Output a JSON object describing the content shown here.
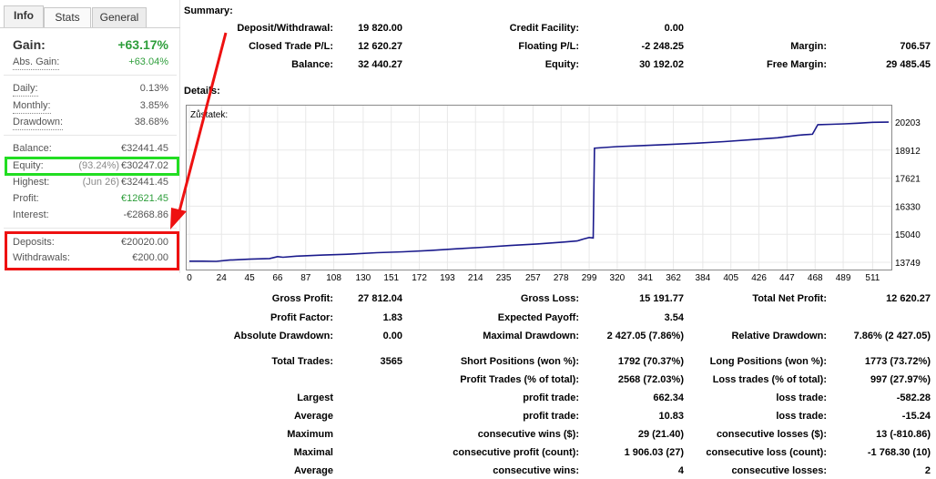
{
  "left_panel": {
    "tabs": [
      "Info",
      "Stats",
      "General"
    ],
    "gain": {
      "label": "Gain:",
      "value": "+63.17%"
    },
    "abs_gain": {
      "label": "Abs. Gain:",
      "value": "+63.04%"
    },
    "daily": {
      "label": "Daily:",
      "value": "0.13%"
    },
    "monthly": {
      "label": "Monthly:",
      "value": "3.85%"
    },
    "drawdown": {
      "label": "Drawdown:",
      "value": "38.68%"
    },
    "balance": {
      "label": "Balance:",
      "value": "€32441.45"
    },
    "equity": {
      "label": "Equity:",
      "sub": "(93.24%)",
      "value": "€30247.02"
    },
    "highest": {
      "label": "Highest:",
      "sub": "(Jun 26)",
      "value": "€32441.45"
    },
    "profit": {
      "label": "Profit:",
      "value": "€12621.45"
    },
    "interest": {
      "label": "Interest:",
      "value": "-€2868.86"
    },
    "deposits": {
      "label": "Deposits:",
      "value": "€20020.00"
    },
    "withdrawals": {
      "label": "Withdrawals:",
      "value": "€200.00"
    }
  },
  "summary": {
    "title": "Summary:",
    "deposit_withdrawal": {
      "label": "Deposit/Withdrawal:",
      "value": "19 820.00"
    },
    "credit_facility": {
      "label": "Credit Facility:",
      "value": "0.00"
    },
    "closed_trade_pl": {
      "label": "Closed Trade P/L:",
      "value": "12 620.27"
    },
    "floating_pl": {
      "label": "Floating P/L:",
      "value": "-2 248.25"
    },
    "margin": {
      "label": "Margin:",
      "value": "706.57"
    },
    "balance": {
      "label": "Balance:",
      "value": "32 440.27"
    },
    "equity": {
      "label": "Equity:",
      "value": "30 192.02"
    },
    "free_margin": {
      "label": "Free Margin:",
      "value": "29 485.45"
    }
  },
  "details": {
    "title": "Details:"
  },
  "chart_data": {
    "type": "line",
    "title": "Zůstatek:",
    "x_ticks": [
      "0",
      "24",
      "45",
      "66",
      "87",
      "108",
      "130",
      "151",
      "172",
      "193",
      "214",
      "235",
      "257",
      "278",
      "299",
      "320",
      "341",
      "362",
      "384",
      "405",
      "426",
      "447",
      "468",
      "489",
      "511"
    ],
    "y_ticks": [
      "20203",
      "18912",
      "17621",
      "16330",
      "15040",
      "13749"
    ],
    "ylim": [
      13749,
      20203
    ],
    "xlim": [
      0,
      523
    ],
    "line_color": "#1a1a8c",
    "series": [
      {
        "x": [
          0,
          10,
          20,
          30,
          45,
          60,
          66,
          70,
          80,
          100,
          120,
          140,
          160,
          180,
          200,
          220,
          240,
          260,
          280,
          290,
          295,
          299,
          302,
          303,
          310,
          320,
          340,
          360,
          380,
          400,
          420,
          440,
          455,
          460,
          466,
          470,
          480,
          490,
          500,
          511,
          523
        ],
        "y": [
          13800,
          13800,
          13790,
          13850,
          13890,
          13920,
          14010,
          13980,
          14030,
          14080,
          14120,
          14190,
          14230,
          14290,
          14370,
          14440,
          14520,
          14590,
          14680,
          14730,
          14820,
          14890,
          14870,
          19000,
          19030,
          19070,
          19120,
          19170,
          19230,
          19300,
          19390,
          19480,
          19590,
          19620,
          19640,
          20080,
          20100,
          20120,
          20150,
          20190,
          20200
        ]
      }
    ]
  },
  "stats": {
    "gross_profit": {
      "label": "Gross Profit:",
      "value": "27 812.04"
    },
    "gross_loss": {
      "label": "Gross Loss:",
      "value": "15 191.77"
    },
    "total_net_profit": {
      "label": "Total Net Profit:",
      "value": "12 620.27"
    },
    "profit_factor": {
      "label": "Profit Factor:",
      "value": "1.83"
    },
    "expected_payoff": {
      "label": "Expected Payoff:",
      "value": "3.54"
    },
    "absolute_drawdown": {
      "label": "Absolute Drawdown:",
      "value": "0.00"
    },
    "maximal_drawdown": {
      "label": "Maximal Drawdown:",
      "value": "2 427.05 (7.86%)"
    },
    "relative_drawdown": {
      "label": "Relative Drawdown:",
      "value": "7.86% (2 427.05)"
    },
    "total_trades": {
      "label": "Total Trades:",
      "value": "3565"
    },
    "short_positions": {
      "label": "Short Positions (won %):",
      "value": "1792 (70.37%)"
    },
    "long_positions": {
      "label": "Long Positions (won %):",
      "value": "1773 (73.72%)"
    },
    "profit_trades": {
      "label": "Profit Trades (% of total):",
      "value": "2568 (72.03%)"
    },
    "loss_trades": {
      "label": "Loss trades (% of total):",
      "value": "997 (27.97%)"
    },
    "largest": {
      "label": "Largest",
      "profit_label": "profit trade:",
      "profit": "662.34",
      "loss_label": "loss trade:",
      "loss": "-582.28"
    },
    "average": {
      "label": "Average",
      "profit_label": "profit trade:",
      "profit": "10.83",
      "loss_label": "loss trade:",
      "loss": "-15.24"
    },
    "maximum": {
      "label": "Maximum",
      "profit_label": "consecutive wins ($):",
      "profit": "29 (21.40)",
      "loss_label": "consecutive losses ($):",
      "loss": "13 (-810.86)"
    },
    "maximal": {
      "label": "Maximal",
      "profit_label": "consecutive profit (count):",
      "profit": "1 906.03 (27)",
      "loss_label": "consecutive loss (count):",
      "loss": "-1 768.30 (10)"
    },
    "average2": {
      "label": "Average",
      "profit_label": "consecutive wins:",
      "profit": "4",
      "loss_label": "consecutive losses:",
      "loss": "2"
    }
  },
  "annotation": {
    "arrow_color": "#ee1111",
    "green_box_color": "#22dd22",
    "red_box_color": "#ee1111"
  }
}
